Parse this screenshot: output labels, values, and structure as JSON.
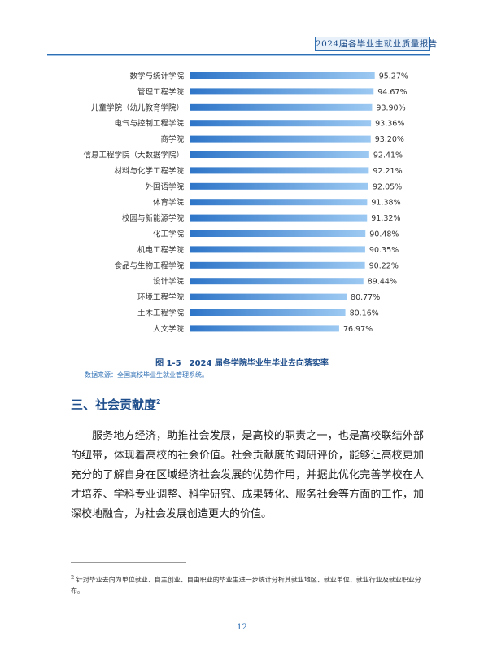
{
  "header": {
    "report_title": "2024届各毕业生就业质量报告"
  },
  "chart_data": {
    "type": "bar",
    "orientation": "horizontal",
    "categories": [
      "数学与统计学院",
      "管理工程学院",
      "儿童学院（幼儿教育学院）",
      "电气与控制工程学院",
      "商学院",
      "信息工程学院（大数据学院）",
      "材料与化学工程学院",
      "外国语学院",
      "体育学院",
      "校园与新能源学院",
      "化工学院",
      "机电工程学院",
      "食品与生物工程学院",
      "设计学院",
      "环境工程学院",
      "土木工程学院",
      "人文学院"
    ],
    "values": [
      95.27,
      94.67,
      93.9,
      93.36,
      93.2,
      92.41,
      92.21,
      92.05,
      91.38,
      91.32,
      90.48,
      90.35,
      90.22,
      89.44,
      80.77,
      80.16,
      76.97
    ],
    "value_labels": [
      "95.27%",
      "94.67%",
      "93.90%",
      "93.36%",
      "93.20%",
      "92.41%",
      "92.21%",
      "92.05%",
      "91.38%",
      "91.32%",
      "90.48%",
      "90.35%",
      "90.22%",
      "89.44%",
      "80.77%",
      "80.16%",
      "76.97%"
    ],
    "xlim": [
      0,
      100
    ],
    "grid": false,
    "bar_color": "#2E75C8",
    "bar_color_light": "#9CC9F2"
  },
  "figure": {
    "caption": "图 1-5　2024 届各学院毕业生毕业去向落实率",
    "source": "数据来源：全国高校毕业生就业管理系统。"
  },
  "section": {
    "title": "三、社会贡献度",
    "footnote_mark": "2",
    "paragraph": "服务地方经济，助推社会发展，是高校的职责之一，也是高校联结外部的纽带，体现着高校的社会价值。社会贡献度的调研评价，能够让高校更加充分的了解自身在区域经济社会发展的优势作用，并据此优化完善学校在人才培养、学科专业调整、科学研究、成果转化、服务社会等方面的工作，加深校地融合，为社会发展创造更大的价值。"
  },
  "footnote": {
    "mark": "2",
    "text": "针对毕业去向为单位就业、自主创业、自由职业的毕业生进一步统计分析其就业地区、就业单位、就业行业及就业职业分布。"
  },
  "page_number": "12"
}
